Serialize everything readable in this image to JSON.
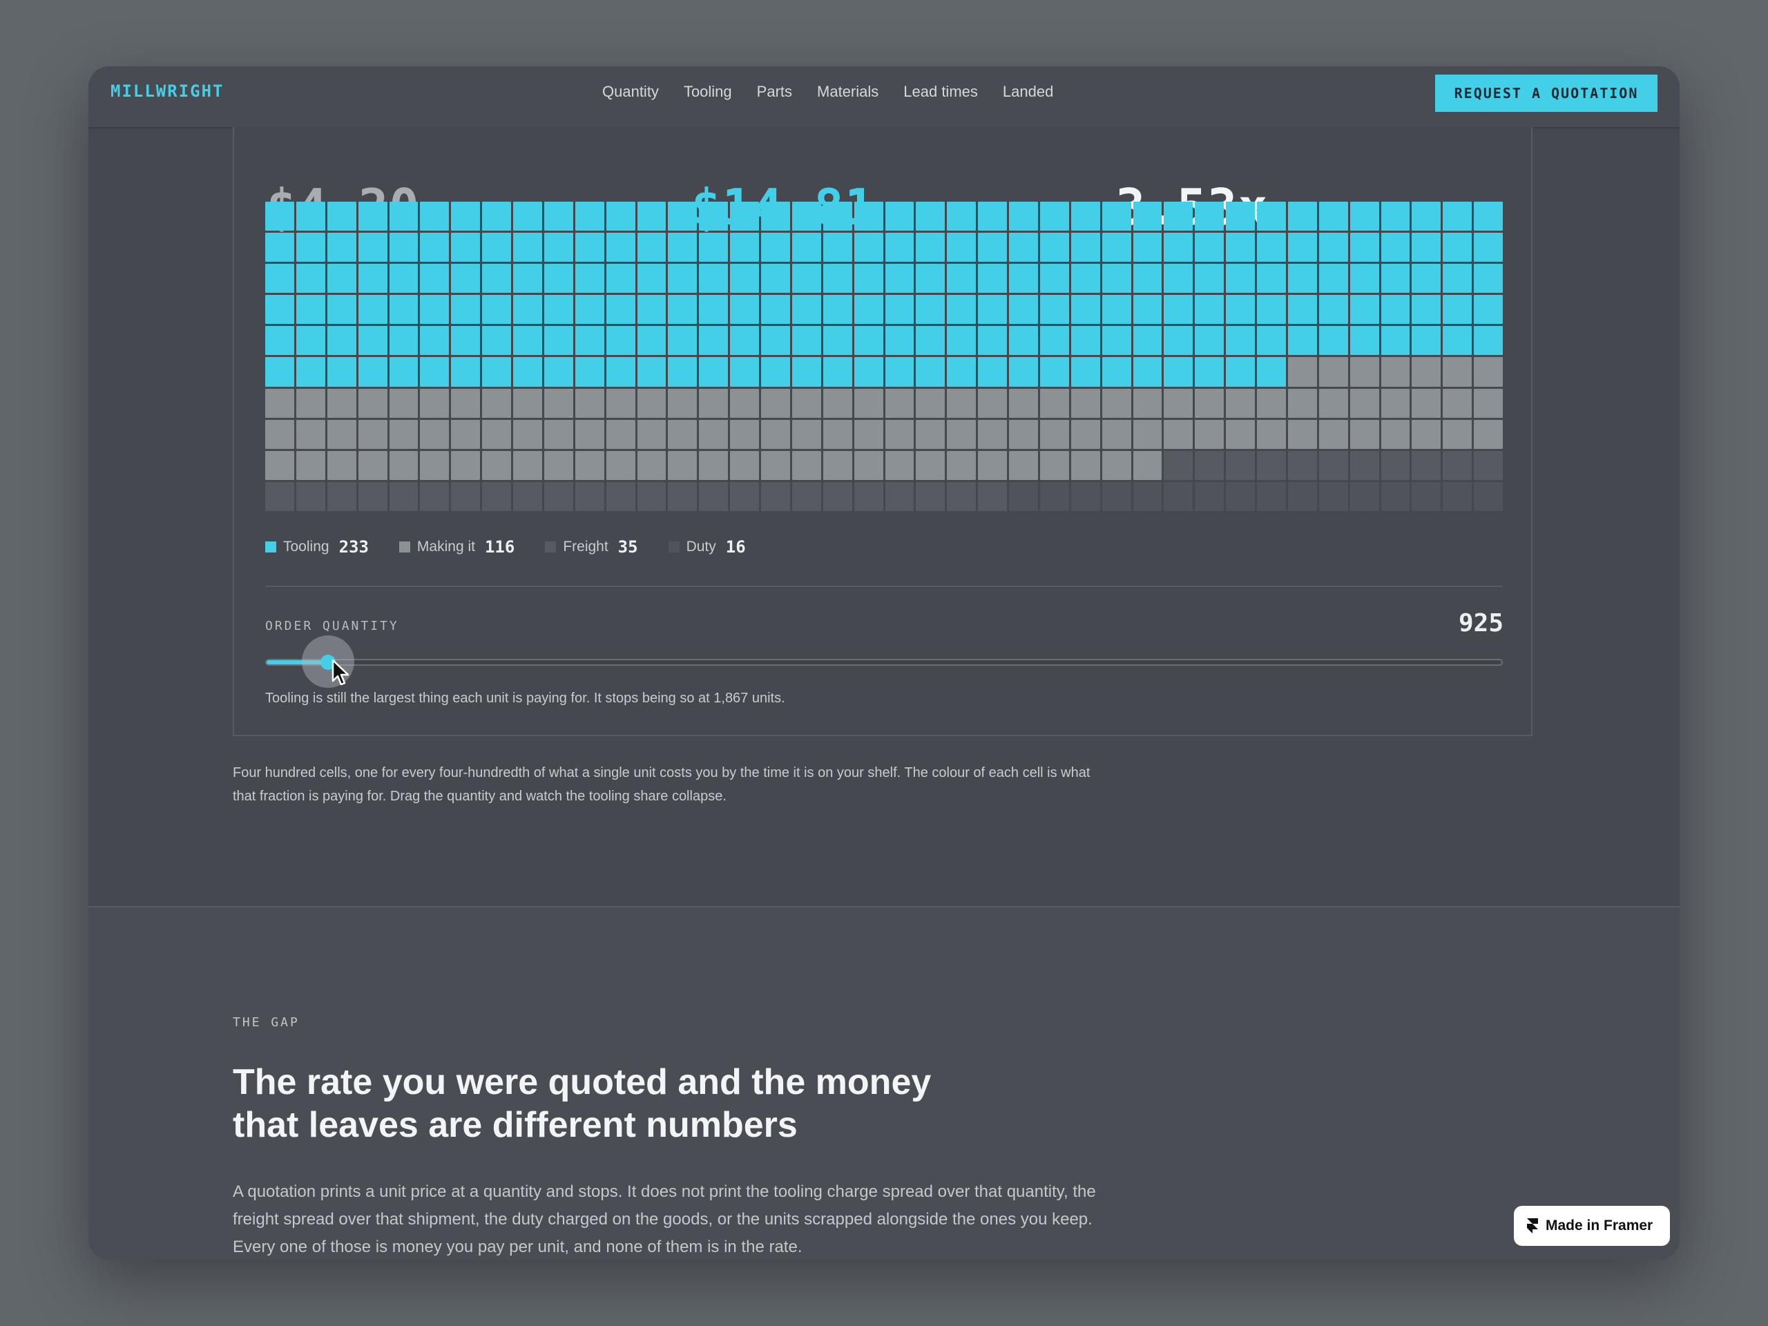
{
  "nav": {
    "brand": "MILLWRIGHT",
    "links": [
      "Quantity",
      "Tooling",
      "Parts",
      "Materials",
      "Lead times",
      "Landed"
    ],
    "cta": "REQUEST A QUOTATION"
  },
  "stats": {
    "quoted": "$4.20",
    "landed": "$14.81",
    "multiplier": "3.53x"
  },
  "colors": {
    "tooling": "#43cfe8",
    "making": "#8c9196",
    "freight": "#575b61",
    "duty": "#50545a"
  },
  "chart_data": {
    "type": "waffle",
    "total_cells": 400,
    "columns": 40,
    "rows": 10,
    "series": [
      {
        "name": "Tooling",
        "value": 233
      },
      {
        "name": "Making it",
        "value": 116
      },
      {
        "name": "Freight",
        "value": 35
      },
      {
        "name": "Duty",
        "value": 16
      }
    ]
  },
  "slider": {
    "label": "ORDER QUANTITY",
    "value": "925",
    "fraction": 0.05,
    "note": "Tooling is still the largest thing each unit is paying for. It stops being so at 1,867 units."
  },
  "caption": "Four hundred cells, one for every four-hundredth of what a single unit costs you by the time it is on your shelf. The colour of each cell is what that fraction is paying for. Drag the quantity and watch the tooling share collapse.",
  "section": {
    "eyebrow": "THE GAP",
    "headline": "The rate you were quoted and the money that leaves are different numbers",
    "body": "A quotation prints a unit price at a quantity and stops. It does not print the tooling charge spread over that quantity, the freight spread over that shipment, the duty charged on the goods, or the units scrapped alongside the ones you keep. Every one of those is money you pay per unit, and none of them is in the rate."
  },
  "badge": "Made in Framer"
}
